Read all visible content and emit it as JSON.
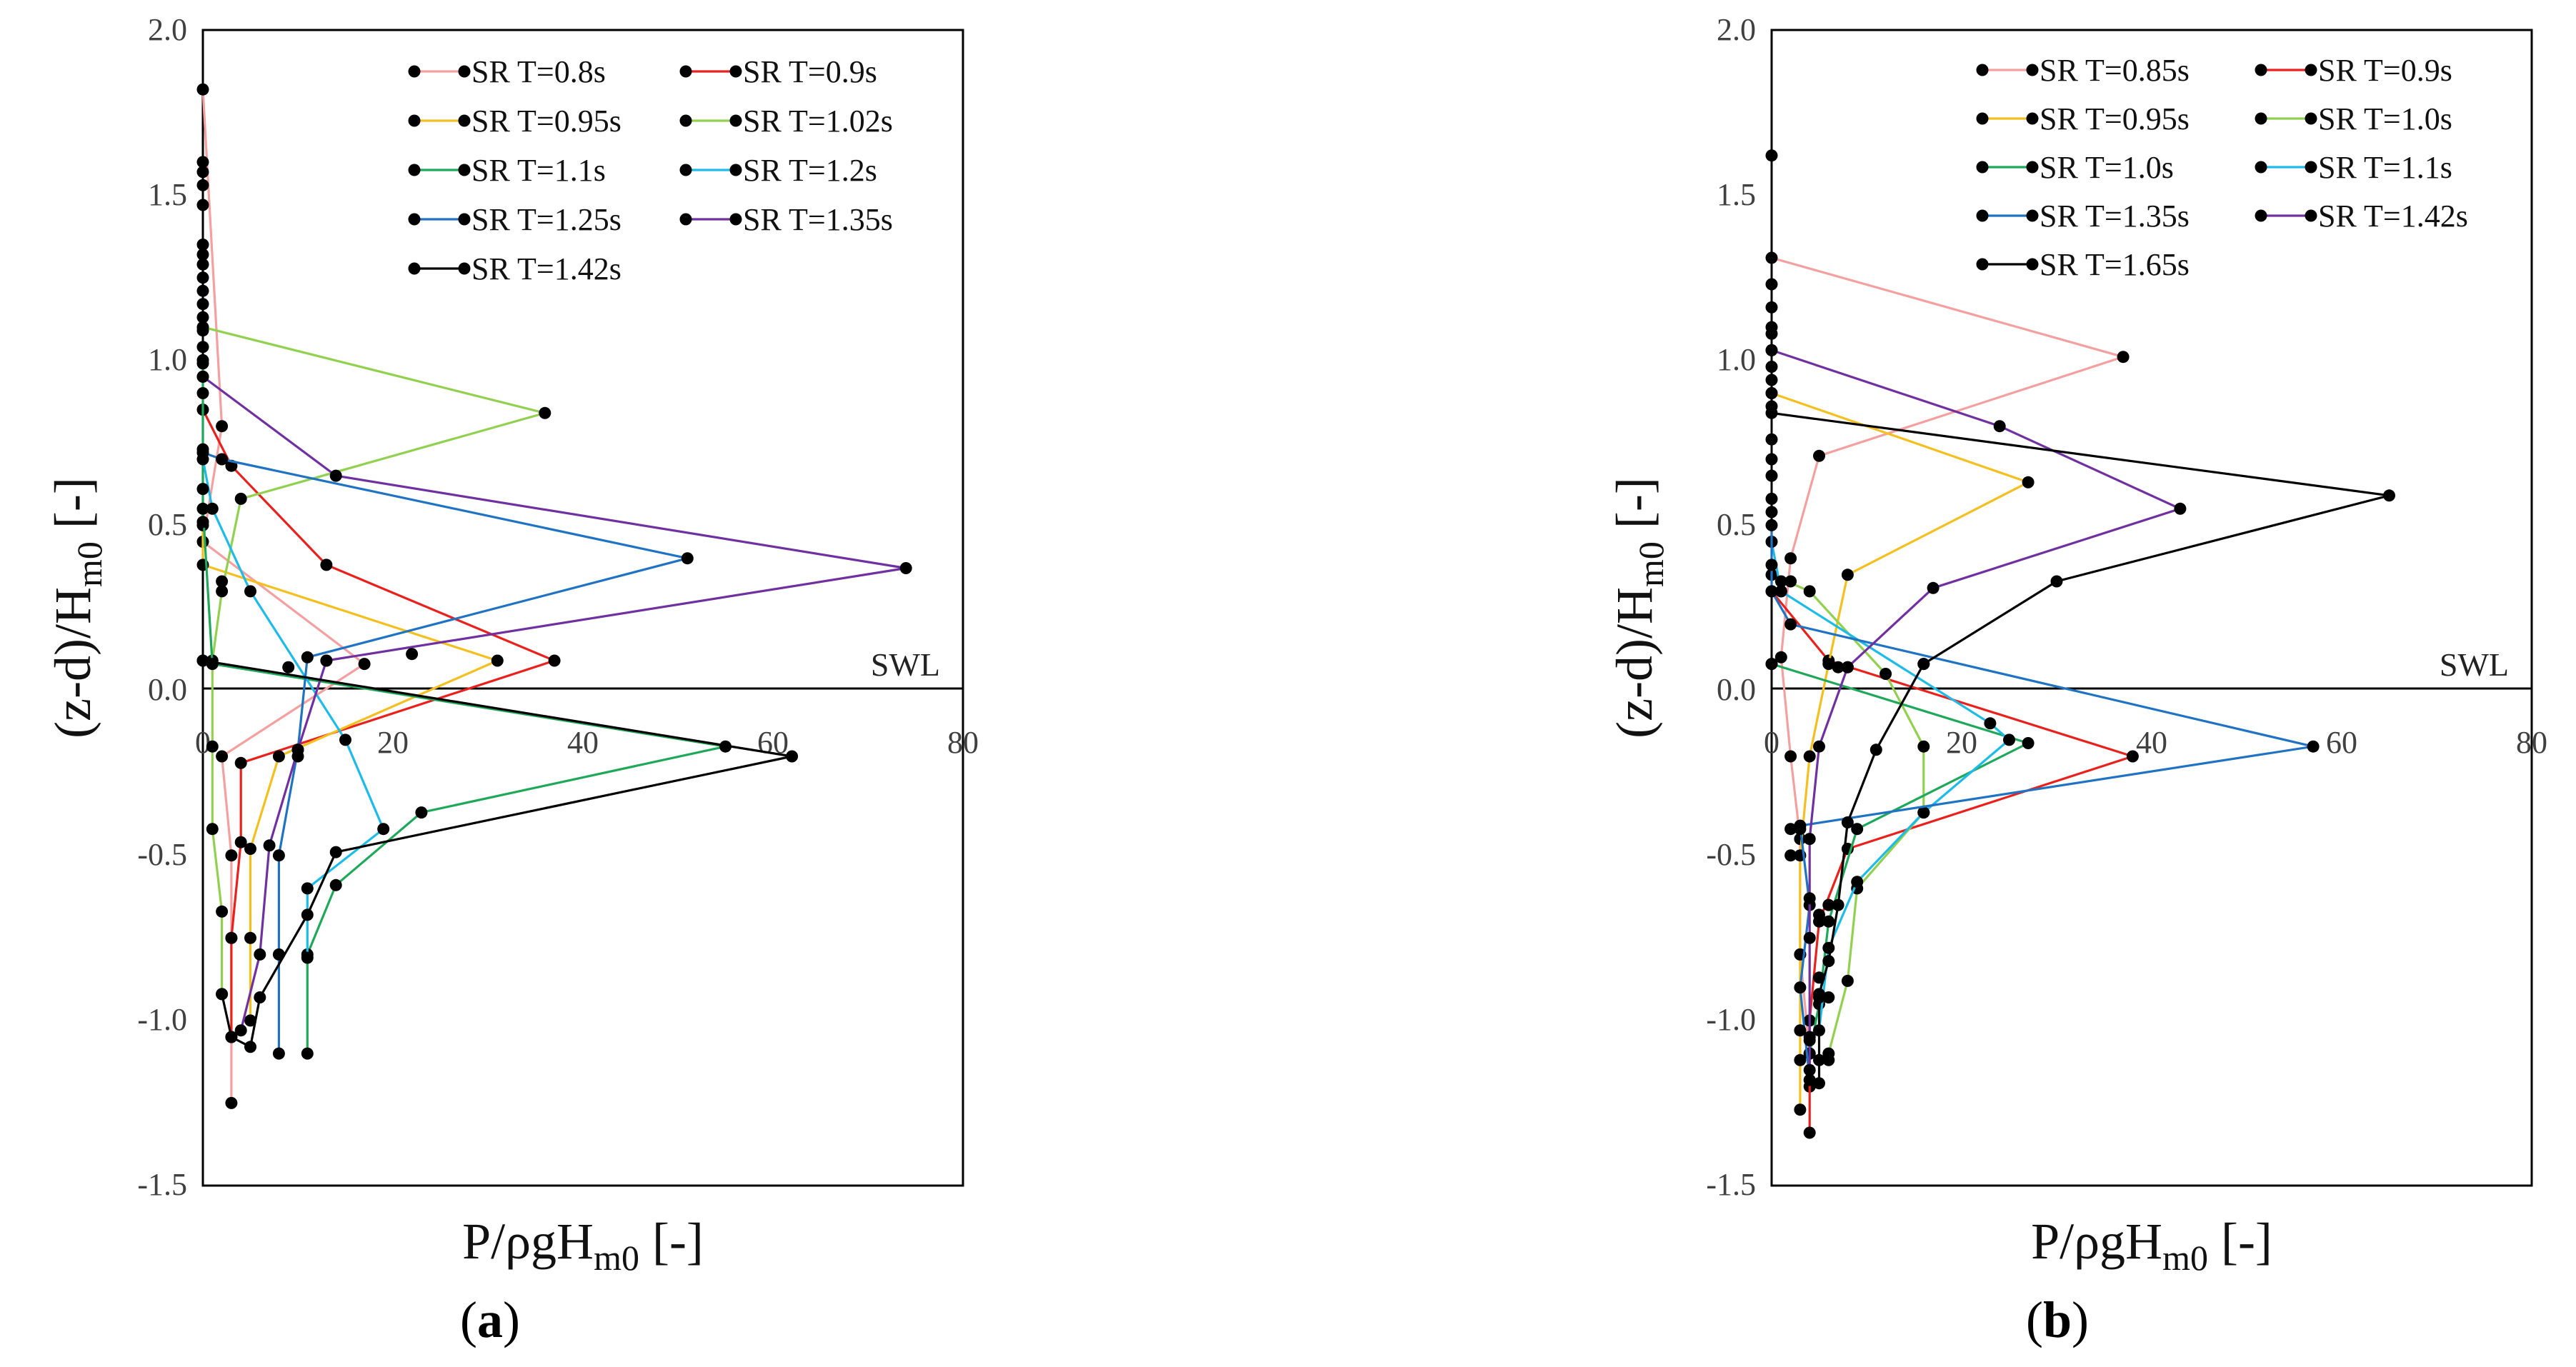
{
  "chart_data": [
    {
      "type": "line",
      "panel": "a",
      "caption_letter": "a",
      "xlabel": "P/ρgH",
      "xlabel_sub": "m0",
      "xlabel_suffix": " [-]",
      "ylabel": "(z-d)/H",
      "ylabel_sub": "m0",
      "ylabel_suffix": " [-]",
      "xlim": [
        0,
        80
      ],
      "ylim": [
        -1.5,
        2.0
      ],
      "xticks": [
        "0",
        "20",
        "40",
        "60",
        "80"
      ],
      "yticks": [
        "2.0",
        "1.5",
        "1.0",
        "0.5",
        "0.0",
        "-0.5",
        "-1.0",
        "-1.5"
      ],
      "annotation": "SWL",
      "legend_position": "top-right",
      "series": [
        {
          "name": "SR T=0.8s",
          "color": "#f4a0a0",
          "points": [
            [
              0,
              1.82
            ],
            [
              2,
              0.8
            ],
            [
              0,
              0.45
            ],
            [
              17,
              0.08
            ],
            [
              2,
              -0.2
            ],
            [
              3,
              -0.5
            ],
            [
              3,
              -0.75
            ],
            [
              3,
              -1.25
            ]
          ]
        },
        {
          "name": "SR T=0.9s",
          "color": "#e8211d",
          "points": [
            [
              0,
              0.85
            ],
            [
              3,
              0.68
            ],
            [
              13,
              0.38
            ],
            [
              37,
              0.09
            ],
            [
              4,
              -0.22
            ],
            [
              4,
              -0.46
            ],
            [
              3,
              -0.75
            ],
            [
              3,
              -1.05
            ]
          ]
        },
        {
          "name": "SR T=0.95s",
          "color": "#f4c020",
          "points": [
            [
              0,
              0.5
            ],
            [
              0,
              0.38
            ],
            [
              31,
              0.09
            ],
            [
              8,
              -0.2
            ],
            [
              5,
              -0.48
            ],
            [
              5,
              -0.75
            ],
            [
              5,
              -1.0
            ]
          ]
        },
        {
          "name": "SR T=1.02s",
          "color": "#92d050",
          "points": [
            [
              0,
              1.1
            ],
            [
              36,
              0.84
            ],
            [
              4,
              0.58
            ],
            [
              2,
              0.3
            ],
            [
              1,
              0.09
            ],
            [
              1,
              -0.17
            ],
            [
              1,
              -0.42
            ],
            [
              2,
              -0.67
            ],
            [
              2,
              -0.92
            ]
          ]
        },
        {
          "name": "SR T=1.1s",
          "color": "#1fa85a",
          "points": [
            [
              0,
              1.0
            ],
            [
              0,
              0.55
            ],
            [
              1,
              0.08
            ],
            [
              55,
              -0.17
            ],
            [
              23,
              -0.37
            ],
            [
              14,
              -0.59
            ],
            [
              11,
              -0.8
            ],
            [
              11,
              -1.1
            ]
          ]
        },
        {
          "name": "SR T=1.2s",
          "color": "#1ebbe8",
          "points": [
            [
              0,
              0.7
            ],
            [
              1,
              0.55
            ],
            [
              5,
              0.3
            ],
            [
              15,
              -0.15
            ],
            [
              19,
              -0.42
            ],
            [
              11,
              -0.6
            ],
            [
              11,
              -0.81
            ]
          ]
        },
        {
          "name": "SR T=1.25s",
          "color": "#1f73c2",
          "points": [
            [
              0,
              0.72
            ],
            [
              2,
              0.7
            ],
            [
              51,
              0.4
            ],
            [
              11,
              0.1
            ],
            [
              10,
              -0.18
            ],
            [
              8,
              -0.5
            ],
            [
              8,
              -0.8
            ],
            [
              8,
              -1.1
            ]
          ]
        },
        {
          "name": "SR T=1.35s",
          "color": "#7030a0",
          "points": [
            [
              0,
              0.95
            ],
            [
              14,
              0.65
            ],
            [
              74,
              0.37
            ],
            [
              13,
              0.09
            ],
            [
              10,
              -0.18
            ],
            [
              7,
              -0.47
            ],
            [
              6,
              -0.8
            ],
            [
              4,
              -1.03
            ]
          ]
        },
        {
          "name": "SR T=1.42s",
          "color": "#000000",
          "points": [
            [
              0,
              0.09
            ],
            [
              62,
              -0.2
            ],
            [
              14,
              -0.49
            ],
            [
              11,
              -0.68
            ],
            [
              6,
              -0.93
            ],
            [
              5,
              -1.08
            ],
            [
              3,
              -1.05
            ],
            [
              2,
              -0.92
            ]
          ]
        }
      ],
      "extra_points": [
        [
          0,
          1.6
        ],
        [
          0,
          1.57
        ],
        [
          0,
          1.53
        ],
        [
          0,
          1.47
        ],
        [
          0,
          1.35
        ],
        [
          0,
          1.32
        ],
        [
          0,
          1.29
        ],
        [
          0,
          1.25
        ],
        [
          0,
          1.21
        ],
        [
          0,
          1.17
        ],
        [
          0,
          1.13
        ],
        [
          0,
          1.09
        ],
        [
          0,
          1.04
        ],
        [
          0,
          0.99
        ],
        [
          0,
          0.95
        ],
        [
          0,
          0.9
        ],
        [
          0,
          0.73
        ],
        [
          0,
          0.61
        ],
        [
          0,
          0.51
        ],
        [
          0,
          0.09
        ],
        [
          2,
          0.33
        ],
        [
          22,
          0.11
        ],
        [
          9,
          0.07
        ],
        [
          13,
          0.09
        ],
        [
          10,
          -0.2
        ]
      ]
    },
    {
      "type": "line",
      "panel": "b",
      "caption_letter": "b",
      "xlabel": "P/ρgH",
      "xlabel_sub": "m0",
      "xlabel_suffix": " [-]",
      "ylabel": "(z-d)/H",
      "ylabel_sub": "m0",
      "ylabel_suffix": " [-]",
      "xlim": [
        0,
        80
      ],
      "ylim": [
        -1.5,
        2.0
      ],
      "xticks": [
        "0",
        "20",
        "40",
        "60",
        "80"
      ],
      "yticks": [
        "2.0",
        "1.5",
        "1.0",
        "0.5",
        "0.0",
        "-0.5",
        "-1.0",
        "-1.5"
      ],
      "annotation": "SWL",
      "legend_position": "top-right",
      "series": [
        {
          "name": "SR T=0.85s",
          "color": "#f4a0a0",
          "points": [
            [
              0,
              1.31
            ],
            [
              37,
              1.01
            ],
            [
              5,
              0.71
            ],
            [
              2,
              0.4
            ],
            [
              1,
              0.1
            ],
            [
              2,
              -0.2
            ],
            [
              3,
              -0.45
            ],
            [
              3,
              -0.8
            ],
            [
              4,
              -1.1
            ],
            [
              4,
              -1.2
            ]
          ]
        },
        {
          "name": "SR T=0.9s",
          "color": "#e8211d",
          "points": [
            [
              0,
              0.3
            ],
            [
              6,
              0.09
            ],
            [
              38,
              -0.2
            ],
            [
              8,
              -0.48
            ],
            [
              5,
              -0.7
            ],
            [
              4,
              -1.0
            ],
            [
              4,
              -1.34
            ]
          ]
        },
        {
          "name": "SR T=0.95s",
          "color": "#f4c020",
          "points": [
            [
              0,
              0.9
            ],
            [
              27,
              0.63
            ],
            [
              8,
              0.35
            ],
            [
              6,
              0.08
            ],
            [
              4,
              -0.2
            ],
            [
              3,
              -0.5
            ],
            [
              3,
              -0.8
            ],
            [
              3,
              -1.27
            ]
          ]
        },
        {
          "name": "SR T=1.0s",
          "color": "#92d050",
          "points": [
            [
              0,
              0.35
            ],
            [
              4,
              0.3
            ],
            [
              12,
              0.05
            ],
            [
              16,
              -0.17
            ],
            [
              16,
              -0.37
            ],
            [
              9,
              -0.6
            ],
            [
              8,
              -0.88
            ],
            [
              6,
              -1.1
            ]
          ]
        },
        {
          "name": "SR T=1.0s",
          "color": "#1fa85a",
          "points": [
            [
              0,
              0.08
            ],
            [
              27,
              -0.16
            ],
            [
              9,
              -0.42
            ],
            [
              6,
              -0.7
            ],
            [
              5,
              -0.95
            ],
            [
              4,
              -1.1
            ]
          ]
        },
        {
          "name": "SR T=1.1s",
          "color": "#1ebbe8",
          "points": [
            [
              0,
              0.45
            ],
            [
              1,
              0.3
            ],
            [
              23,
              -0.1
            ],
            [
              25,
              -0.15
            ],
            [
              16,
              -0.37
            ],
            [
              9,
              -0.58
            ],
            [
              6,
              -0.78
            ],
            [
              5,
              -1.03
            ]
          ]
        },
        {
          "name": "SR T=1.35s",
          "color": "#1f73c2",
          "points": [
            [
              0,
              0.5
            ],
            [
              0,
              0.3
            ],
            [
              2,
              0.2
            ],
            [
              57,
              -0.17
            ],
            [
              3,
              -0.41
            ],
            [
              4,
              -0.65
            ],
            [
              3,
              -0.9
            ],
            [
              4,
              -1.18
            ]
          ]
        },
        {
          "name": "SR T=1.42s",
          "color": "#7030a0",
          "points": [
            [
              0,
              1.03
            ],
            [
              24,
              0.8
            ],
            [
              43,
              0.55
            ],
            [
              17,
              0.31
            ],
            [
              8,
              0.07
            ],
            [
              5,
              -0.17
            ],
            [
              4,
              -0.45
            ],
            [
              4,
              -0.75
            ],
            [
              4,
              -1.05
            ],
            [
              4,
              -1.15
            ]
          ]
        },
        {
          "name": "SR T=1.65s",
          "color": "#000000",
          "points": [
            [
              0,
              0.84
            ],
            [
              65,
              0.59
            ],
            [
              30,
              0.33
            ],
            [
              16,
              0.08
            ],
            [
              11,
              -0.18
            ],
            [
              8,
              -0.4
            ],
            [
              7,
              -0.65
            ],
            [
              6,
              -0.82
            ],
            [
              5,
              -0.92
            ],
            [
              5,
              -1.19
            ]
          ]
        }
      ],
      "extra_points": [
        [
          0,
          1.62
        ],
        [
          0,
          1.23
        ],
        [
          0,
          1.16
        ],
        [
          0,
          1.1
        ],
        [
          0,
          1.08
        ],
        [
          0,
          1.03
        ],
        [
          0,
          0.98
        ],
        [
          0,
          0.94
        ],
        [
          0,
          0.9
        ],
        [
          0,
          0.86
        ],
        [
          0,
          0.76
        ],
        [
          0,
          0.7
        ],
        [
          0,
          0.65
        ],
        [
          0,
          0.58
        ],
        [
          0,
          0.54
        ],
        [
          0,
          0.38
        ],
        [
          1,
          0.33
        ],
        [
          2,
          0.33
        ],
        [
          1,
          0.3
        ],
        [
          0,
          0.08
        ],
        [
          7,
          0.07
        ],
        [
          8,
          0.07
        ],
        [
          16,
          0.08
        ],
        [
          2,
          -0.42
        ],
        [
          2,
          -0.5
        ],
        [
          3,
          -0.42
        ],
        [
          4,
          -0.63
        ],
        [
          5,
          -0.68
        ],
        [
          6,
          -0.65
        ],
        [
          5,
          -0.87
        ],
        [
          5,
          -0.93
        ],
        [
          6,
          -0.93
        ],
        [
          3,
          -1.03
        ],
        [
          4,
          -1.06
        ],
        [
          5,
          -1.12
        ],
        [
          6,
          -1.12
        ],
        [
          3,
          -1.12
        ]
      ]
    }
  ]
}
